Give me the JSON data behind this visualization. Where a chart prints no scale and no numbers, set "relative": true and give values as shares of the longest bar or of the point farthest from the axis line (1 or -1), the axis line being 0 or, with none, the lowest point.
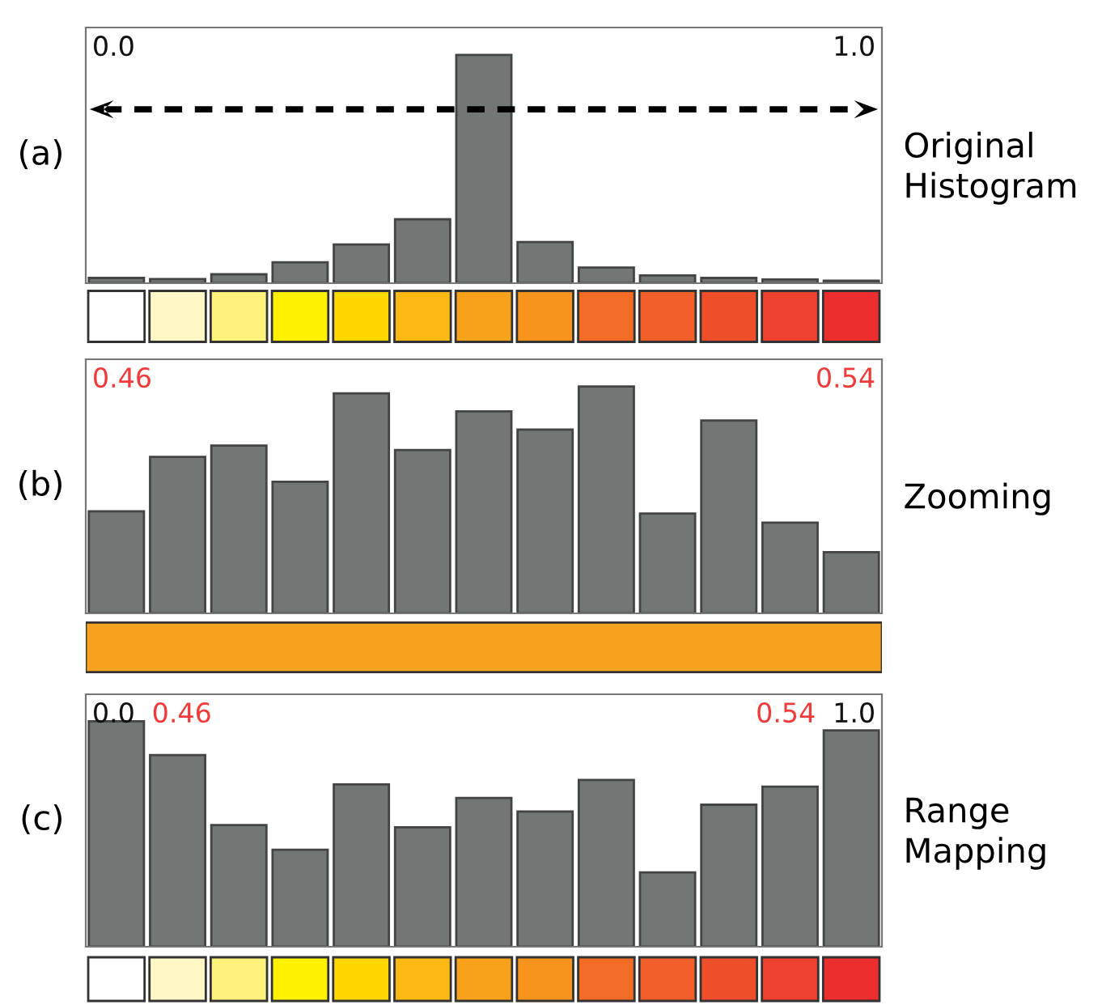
{
  "chart_data": [
    {
      "type": "bar",
      "relative": true,
      "color": "#727776",
      "annotations": [
        "(a)",
        "Original Histogram",
        "0.0",
        "1.0"
      ],
      "categories": [
        null,
        null,
        null,
        null,
        null,
        null,
        null,
        null,
        null,
        null,
        null,
        null,
        null
      ],
      "values": [
        0.023,
        0.018,
        0.039,
        0.092,
        0.17,
        0.28,
        1,
        0.18,
        0.069,
        0.034,
        0.023,
        0.016,
        0.011
      ]
    },
    {
      "type": "other",
      "categories": [
        null,
        null,
        null,
        null,
        null,
        null,
        null,
        null,
        null,
        null,
        null,
        null,
        null
      ],
      "colors": [
        "#ffffff",
        "#fff8c6",
        "#fff27c",
        "#fff200",
        "#ffd800",
        "#fcb813",
        "#f8a21c",
        "#f7941d",
        "#f26c25",
        "#f15f2a",
        "#ef4e2b",
        "#ee4130",
        "#ed2e2e"
      ]
    },
    {
      "type": "bar",
      "relative": true,
      "color": "#727776",
      "annotations": [
        "(b)",
        "Zooming",
        "0.46",
        "0.54"
      ],
      "categories": [
        null,
        null,
        null,
        null,
        null,
        null,
        null,
        null,
        null,
        null,
        null,
        null,
        null
      ],
      "values": [
        0.45,
        0.69,
        0.74,
        0.58,
        0.97,
        0.72,
        0.89,
        0.81,
        1,
        0.44,
        0.85,
        0.4,
        0.27
      ]
    },
    {
      "type": "other",
      "categories": [
        null
      ],
      "colors": [
        "#f7a21e"
      ]
    },
    {
      "type": "bar",
      "relative": true,
      "color": "#727776",
      "annotations": [
        "(c)",
        "Range Mapping",
        "0.0",
        "0.46",
        "0.54",
        "1.0"
      ],
      "categories": [
        null,
        null,
        null,
        null,
        null,
        null,
        null,
        null,
        null,
        null,
        null,
        null,
        null
      ],
      "values": [
        1,
        0.85,
        0.54,
        0.43,
        0.72,
        0.53,
        0.66,
        0.6,
        0.74,
        0.33,
        0.63,
        0.71,
        0.96
      ]
    },
    {
      "type": "other",
      "categories": [
        null,
        null,
        null,
        null,
        null,
        null,
        null,
        null,
        null,
        null,
        null,
        null,
        null
      ],
      "colors": [
        "#ffffff",
        "#fff8c6",
        "#fff27c",
        "#fff200",
        "#ffd800",
        "#fcb813",
        "#f8a21c",
        "#f7941d",
        "#f26c25",
        "#f15f2a",
        "#ef4e2b",
        "#ee4130",
        "#ed2e2e"
      ]
    }
  ]
}
